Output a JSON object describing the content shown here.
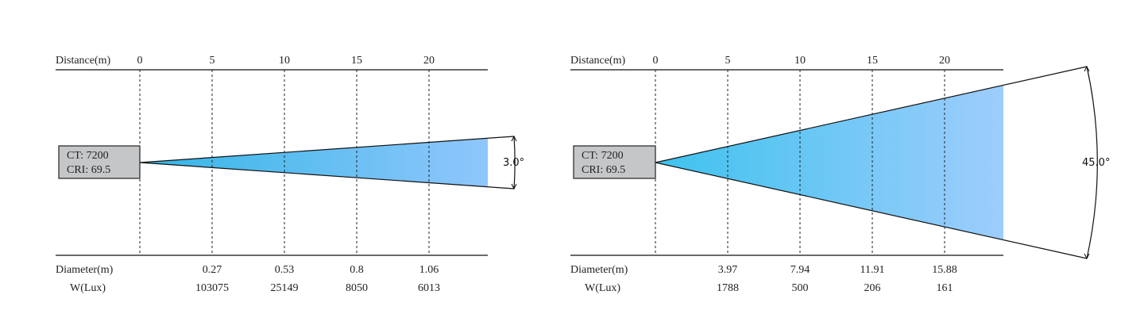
{
  "diagrams": [
    {
      "distance_label": "Distance(m)",
      "distance_ticks": [
        "0",
        "5",
        "10",
        "15",
        "20"
      ],
      "distance_values": [
        0,
        5,
        10,
        15,
        20
      ],
      "max_distance": 24,
      "info_ct": "CT: 7200",
      "info_cri": "CRI: 69.5",
      "beam_angle": "3.0°",
      "diameter_label": "Diameter(m)",
      "diameters": [
        "0.27",
        "0.53",
        "0.8",
        "1.06"
      ],
      "lux_label": "W(Lux)",
      "lux": [
        "103075",
        "25149",
        "8050",
        "6013"
      ],
      "gradient": [
        "#33b6e6",
        "#90c6fc"
      ]
    },
    {
      "distance_label": "Distance(m)",
      "distance_ticks": [
        "0",
        "5",
        "10",
        "15",
        "20"
      ],
      "distance_values": [
        0,
        5,
        10,
        15,
        20
      ],
      "max_distance": 24,
      "info_ct": "CT: 7200",
      "info_cri": "CRI: 69.5",
      "beam_angle": "45.0°",
      "diameter_label": "Diameter(m)",
      "diameters": [
        "3.97",
        "7.94",
        "11.91",
        "15.88"
      ],
      "lux_label": "W(Lux)",
      "lux": [
        "1788",
        "500",
        "206",
        "161"
      ],
      "gradient": [
        "#3ec2ee",
        "#9ecdfc"
      ]
    }
  ]
}
